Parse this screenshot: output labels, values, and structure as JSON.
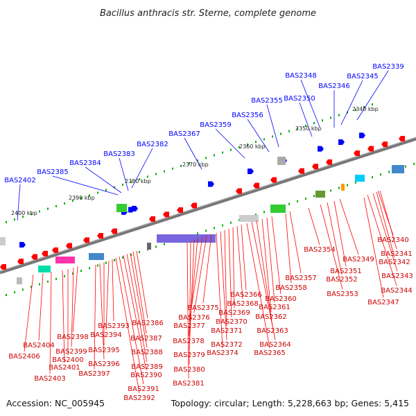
{
  "title": "Bacillus anthracis str. Sterne, complete genome",
  "footer": {
    "accession": "Accession: NC_005945",
    "summary": "Topology: circular; Length: 5,228,663 bp; Genes: 5,415"
  },
  "colors": {
    "forward_gene": "#0000ff",
    "reverse_gene": "#ff0000",
    "backbone": "#888888",
    "tick": "#00aa00"
  },
  "scale_labels": [
    "2340 kbp",
    "2350 kbp",
    "2360 kbp",
    "2370 kbp",
    "2380 kbp",
    "2390 kbp",
    "2400 kbp"
  ],
  "forward_genes": [
    "BAS2339",
    "BAS2345",
    "BAS2346",
    "BAS2348",
    "BAS2350",
    "BAS2355",
    "BAS2356",
    "BAS2359",
    "BAS2367",
    "BAS2382",
    "BAS2383",
    "BAS2384",
    "BAS2385",
    "BAS2402"
  ],
  "reverse_genes": [
    "BAS2340",
    "BAS2341",
    "BAS2342",
    "BAS2343",
    "BAS2344",
    "BAS2347",
    "BAS2349",
    "BAS2351",
    "BAS2352",
    "BAS2353",
    "BAS2354",
    "BAS2357",
    "BAS2358",
    "BAS2360",
    "BAS2361",
    "BAS2362",
    "BAS2363",
    "BAS2364",
    "BAS2365",
    "BAS2366",
    "BAS2368",
    "BAS2369",
    "BAS2370",
    "BAS2371",
    "BAS2372",
    "BAS2374",
    "BAS2375",
    "BAS2376",
    "BAS2377",
    "BAS2378",
    "BAS2379",
    "BAS2380",
    "BAS2381",
    "BAS2386",
    "BAS2387",
    "BAS2388",
    "BAS2389",
    "BAS2390",
    "BAS2391",
    "BAS2392",
    "BAS2393",
    "BAS2394",
    "BAS2395",
    "BAS2396",
    "BAS2397",
    "BAS2398",
    "BAS2399",
    "BAS2400",
    "BAS2401",
    "BAS2403",
    "BAS2404",
    "BAS2406"
  ]
}
